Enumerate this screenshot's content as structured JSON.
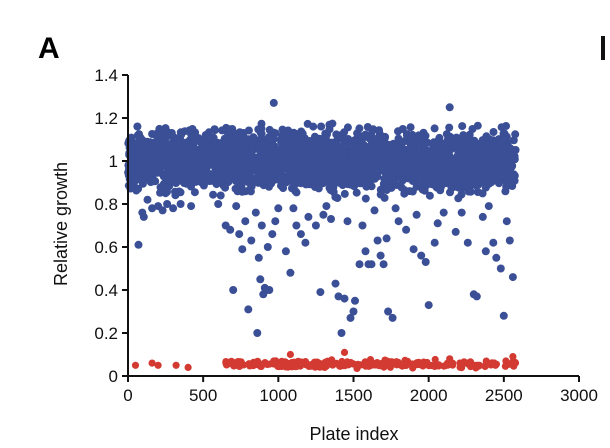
{
  "panel_label": "A",
  "chart_data": {
    "type": "scatter",
    "title": "",
    "xlabel": "Plate index",
    "ylabel": "Relative growth",
    "xlim": [
      0,
      3000
    ],
    "ylim": [
      0,
      1.4
    ],
    "xticks": [
      0,
      500,
      1000,
      1500,
      2000,
      2500,
      3000
    ],
    "yticks": [
      0,
      0.2,
      0.4,
      0.6,
      0.8,
      1,
      1.2,
      1.4
    ],
    "xtick_labels": [
      "0",
      "500",
      "1000",
      "1500",
      "2000",
      "2500",
      "3000"
    ],
    "ytick_labels": [
      "0",
      "0.2",
      "0.4",
      "0.6",
      "0.8",
      "1",
      "1.2",
      "1.4"
    ],
    "grid": false,
    "legend": "none",
    "series": [
      {
        "color": "#3a4f96",
        "band": {
          "x_range": [
            0,
            2580
          ],
          "y_range": [
            0.8,
            1.2
          ],
          "approx_points": 2500
        },
        "points": [
          [
            70,
            0.61
          ],
          [
            95,
            0.76
          ],
          [
            105,
            0.74
          ],
          [
            130,
            0.82
          ],
          [
            160,
            0.78
          ],
          [
            200,
            0.79
          ],
          [
            230,
            0.77
          ],
          [
            260,
            0.8
          ],
          [
            300,
            0.78
          ],
          [
            350,
            0.8
          ],
          [
            420,
            0.79
          ],
          [
            600,
            0.8
          ],
          [
            650,
            0.7
          ],
          [
            680,
            0.68
          ],
          [
            700,
            0.4
          ],
          [
            720,
            0.79
          ],
          [
            740,
            0.66
          ],
          [
            760,
            0.59
          ],
          [
            780,
            0.72
          ],
          [
            800,
            0.31
          ],
          [
            820,
            0.63
          ],
          [
            850,
            0.76
          ],
          [
            860,
            0.2
          ],
          [
            870,
            0.55
          ],
          [
            880,
            0.45
          ],
          [
            890,
            0.7
          ],
          [
            900,
            0.38
          ],
          [
            910,
            0.41
          ],
          [
            920,
            0.4
          ],
          [
            930,
            0.6
          ],
          [
            940,
            0.4
          ],
          [
            960,
            0.66
          ],
          [
            970,
            1.27
          ],
          [
            980,
            0.72
          ],
          [
            1000,
            0.78
          ],
          [
            1050,
            0.58
          ],
          [
            1080,
            0.48
          ],
          [
            1100,
            0.78
          ],
          [
            1120,
            0.7
          ],
          [
            1150,
            0.66
          ],
          [
            1180,
            0.62
          ],
          [
            1200,
            0.74
          ],
          [
            1250,
            0.7
          ],
          [
            1280,
            0.39
          ],
          [
            1300,
            0.75
          ],
          [
            1320,
            0.79
          ],
          [
            1350,
            0.73
          ],
          [
            1380,
            0.43
          ],
          [
            1400,
            0.37
          ],
          [
            1420,
            0.2
          ],
          [
            1440,
            0.36
          ],
          [
            1460,
            0.72
          ],
          [
            1480,
            0.27
          ],
          [
            1500,
            0.3
          ],
          [
            1510,
            0.35
          ],
          [
            1540,
            0.52
          ],
          [
            1560,
            0.7
          ],
          [
            1580,
            0.58
          ],
          [
            1600,
            0.52
          ],
          [
            1620,
            0.52
          ],
          [
            1640,
            0.77
          ],
          [
            1660,
            0.63
          ],
          [
            1680,
            0.56
          ],
          [
            1700,
            0.52
          ],
          [
            1720,
            0.64
          ],
          [
            1730,
            0.3
          ],
          [
            1760,
            0.27
          ],
          [
            1780,
            0.78
          ],
          [
            1800,
            0.72
          ],
          [
            1850,
            0.68
          ],
          [
            1900,
            0.59
          ],
          [
            1920,
            0.75
          ],
          [
            1950,
            0.56
          ],
          [
            1980,
            0.53
          ],
          [
            2000,
            0.33
          ],
          [
            2040,
            0.62
          ],
          [
            2060,
            0.71
          ],
          [
            2100,
            0.76
          ],
          [
            2140,
            1.25
          ],
          [
            2180,
            0.67
          ],
          [
            2220,
            0.76
          ],
          [
            2260,
            0.62
          ],
          [
            2300,
            0.38
          ],
          [
            2320,
            0.37
          ],
          [
            2360,
            0.74
          ],
          [
            2380,
            0.58
          ],
          [
            2400,
            0.79
          ],
          [
            2430,
            0.62
          ],
          [
            2450,
            0.55
          ],
          [
            2480,
            0.5
          ],
          [
            2500,
            0.28
          ],
          [
            2520,
            0.72
          ],
          [
            2540,
            0.63
          ],
          [
            2560,
            0.46
          ]
        ]
      },
      {
        "color": "#d23a32",
        "band": {
          "x_range": [
            650,
            2580
          ],
          "y_range": [
            0.03,
            0.08
          ],
          "approx_points": 250
        },
        "points": [
          [
            50,
            0.05
          ],
          [
            160,
            0.06
          ],
          [
            200,
            0.05
          ],
          [
            320,
            0.05
          ],
          [
            400,
            0.04
          ],
          [
            1080,
            0.1
          ],
          [
            1440,
            0.11
          ],
          [
            2140,
            0.08
          ],
          [
            2560,
            0.09
          ]
        ]
      }
    ]
  }
}
